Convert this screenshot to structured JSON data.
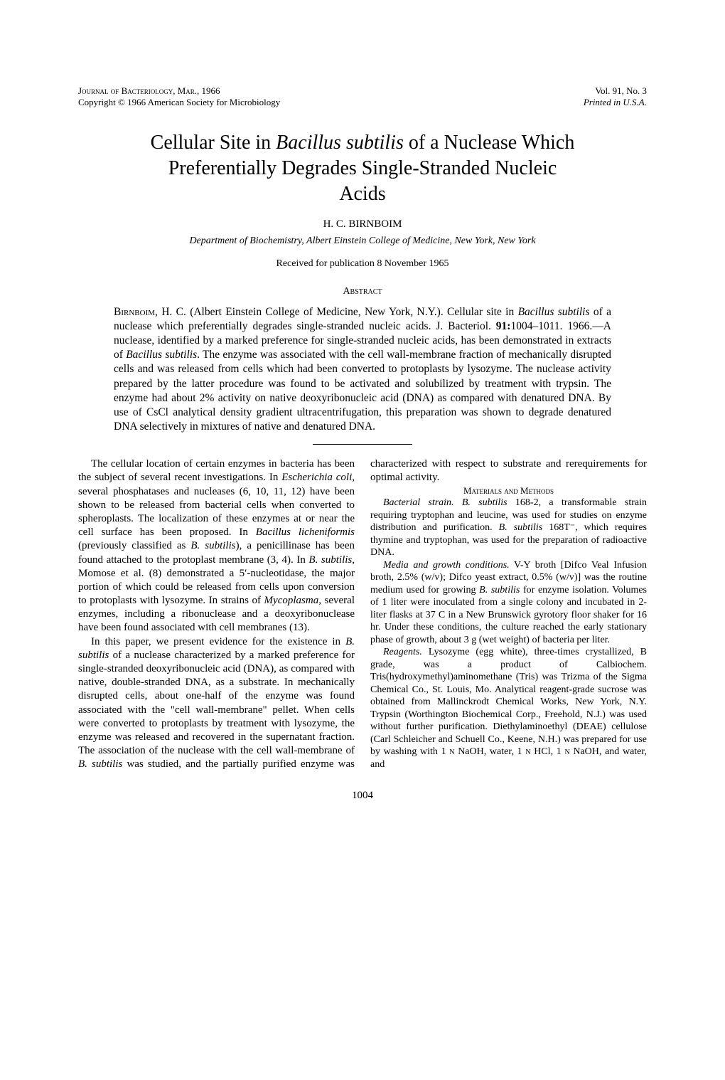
{
  "header": {
    "journal_line": "Journal of Bacteriology, Mar., 1966",
    "copyright_line": "Copyright © 1966   American Society for Microbiology",
    "vol_line": "Vol. 91, No. 3",
    "printed_line": "Printed in U.S.A."
  },
  "title_line1": "Cellular Site in ",
  "title_italic1": "Bacillus subtilis",
  "title_line1b": " of a Nuclease Which",
  "title_line2": "Preferentially Degrades Single-Stranded Nucleic",
  "title_line3": "Acids",
  "author": "H. C. BIRNBOIM",
  "affiliation": "Department of Biochemistry, Albert Einstein College of Medicine, New York, New York",
  "received": "Received for publication 8 November 1965",
  "abstract_heading": "Abstract",
  "abstract": {
    "lead": "Birnboim",
    "rest": ", H. C. (Albert Einstein College of Medicine, New York, N.Y.). Cellular site in ",
    "i1": "Bacillus subtilis",
    "r2": " of a nuclease which preferentially degrades single-stranded nucleic acids. J. Bacteriol. ",
    "b1": "91:",
    "r3": "1004–1011. 1966.—A nuclease, identified by a marked preference for single-stranded nucleic acids, has been demonstrated in extracts of ",
    "i2": "Bacillus subtilis",
    "r4": ". The enzyme was associated with the cell wall-membrane fraction of mechanically disrupted cells and was released from cells which had been converted to protoplasts by lysozyme. The nuclease activity prepared by the latter procedure was found to be activated and solubilized by treatment with trypsin. The enzyme had about 2% activity on native deoxyribonucleic acid (DNA) as compared with denatured DNA. By use of CsCl analytical density gradient ultracentrifugation, this preparation was shown to degrade denatured DNA selectively in mixtures of native and denatured DNA."
  },
  "body": {
    "p1a": "The cellular location of certain enzymes in bacteria has been the subject of several recent investigations. In ",
    "p1i1": "Escherichia coli",
    "p1b": ", several phosphatases and nucleases (6, 10, 11, 12) have been shown to be released from bacterial cells when converted to spheroplasts. The localization of these enzymes at or near the cell surface has been proposed. In ",
    "p1i2": "Bacillus licheniformis",
    "p1c": " (previously classified as ",
    "p1i3": "B. subtilis",
    "p1d": "), a penicillinase has been found attached to the protoplast membrane (3, 4). In ",
    "p1i4": "B. subtilis",
    "p1e": ", Momose et al. (8) demonstrated a 5′-nucleotidase, the major portion of which could be released from cells upon conversion to protoplasts with lysozyme. In strains of ",
    "p1i5": "Mycoplasma",
    "p1f": ", several enzymes, including a ribonuclease and a deoxyribonuclease have been found associated with cell membranes (13).",
    "p2a": "In this paper, we present evidence for the existence in ",
    "p2i1": "B. subtilis",
    "p2b": " of a nuclease characterized by a marked preference for single-stranded deoxyribonucleic acid (DNA), as compared with native, double-stranded DNA, as a substrate. In mechanically disrupted cells, about one-half of the enzyme was found associated with the \"cell wall-membrane\" pellet. When cells were converted to protoplasts by treatment with lysozyme, the enzyme was released and recovered in the supernatant fraction. The association of the nuclease with the cell wall-membrane of ",
    "p2i2": "B. subtilis",
    "p2c": " was studied, and the partially purified enzyme was characterized with respect to substrate and rerequirements for optimal activity.",
    "methods_heading": "Materials and Methods",
    "m1i1": "Bacterial strain. B. subtilis",
    "m1a": " 168-2, a transformable strain requiring tryptophan and leucine, was used for studies on enzyme distribution and purification. ",
    "m1i2": "B. subtilis",
    "m1b": " 168T⁻, which requires thymine and tryptophan, was used for the preparation of radioactive DNA.",
    "m2i1": "Media and growth conditions.",
    "m2a": " V-Y broth [Difco Veal Infusion broth, 2.5% (w/v); Difco yeast extract, 0.5% (w/v)] was the routine medium used for growing ",
    "m2i2": "B. subtilis",
    "m2b": " for enzyme isolation. Volumes of 1 liter were inoculated from a single colony and incubated in 2-liter flasks at 37 C in a New Brunswick gyrotory floor shaker for 16 hr. Under these conditions, the culture reached the early stationary phase of growth, about 3 g (wet weight) of bacteria per liter.",
    "m3i1": "Reagents.",
    "m3a": " Lysozyme (egg white), three-times crystallized, B grade, was a product of Calbiochem. Tris(hydroxymethyl)aminomethane (Tris) was Trizma of the Sigma Chemical Co., St. Louis, Mo. Analytical reagent-grade sucrose was obtained from Mallinckrodt Chemical Works, New York, N.Y. Trypsin (Worthington Biochemical Corp., Freehold, N.J.) was used without further purification. Diethylaminoethyl (DEAE) cellulose (Carl Schleicher and Schuell Co., Keene, N.H.) was prepared for use by washing with 1 ",
    "m3sc1": "n",
    "m3b": " NaOH, water, 1 ",
    "m3sc2": "n",
    "m3c": " HCl, 1 ",
    "m3sc3": "n",
    "m3d": " NaOH, and water, and"
  },
  "page_number": "1004"
}
